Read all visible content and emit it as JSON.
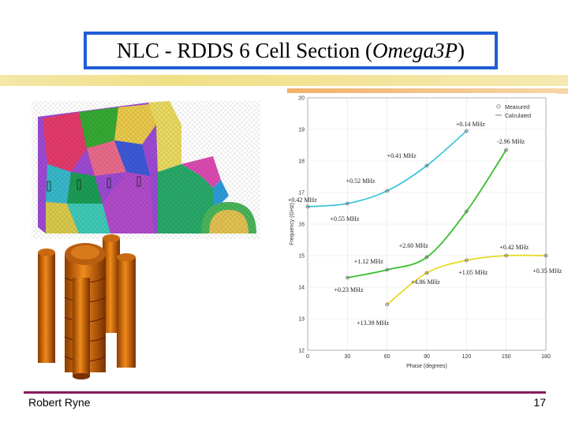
{
  "slide": {
    "title_prefix": "NLC - RDDS 6 Cell Section (",
    "title_italic": "Omega3P",
    "title_suffix": ")",
    "author": "Robert Ryne",
    "page_number": "17"
  },
  "chart_data": {
    "type": "line",
    "xlabel": "Phase (degrees)",
    "ylabel": "Frequency (GHz)",
    "xlim": [
      0,
      180
    ],
    "ylim": [
      12,
      20
    ],
    "x_ticks": [
      "0",
      "30",
      "60",
      "90",
      "120",
      "150",
      "180"
    ],
    "y_ticks": [
      "12",
      "13",
      "14",
      "15",
      "16",
      "17",
      "18",
      "19",
      "20"
    ],
    "legend": {
      "position": "top-right",
      "entries": [
        "Measured",
        "Calculated"
      ]
    },
    "series": [
      {
        "color": "#3fc4dc",
        "x": [
          0,
          30,
          60,
          90,
          120
        ],
        "y": [
          16.55,
          16.65,
          17.05,
          17.85,
          18.95
        ]
      },
      {
        "color": "#38c02a",
        "x": [
          30,
          60,
          90,
          120,
          150
        ],
        "y": [
          14.3,
          14.55,
          14.95,
          16.4,
          18.35
        ]
      },
      {
        "color": "#e8d820",
        "x": [
          60,
          90,
          120,
          150,
          180
        ],
        "y": [
          13.45,
          14.45,
          14.85,
          15.0,
          15.0
        ]
      }
    ],
    "annotations": [
      {
        "text": "+0.14 MHz",
        "x": 112,
        "y": 19.1
      },
      {
        "text": "-2.96 MHz",
        "x": 143,
        "y": 18.55
      },
      {
        "text": "+0.41 MHz",
        "x": 60,
        "y": 18.1
      },
      {
        "text": "+0.52 MHz",
        "x": 29,
        "y": 17.3
      },
      {
        "text": "+0.42 MHz",
        "x": -15,
        "y": 16.7
      },
      {
        "text": "+0.55 MHz",
        "x": 17,
        "y": 16.1
      },
      {
        "text": "+2.60 MHz",
        "x": 69,
        "y": 15.25
      },
      {
        "text": "+0.42 MHz",
        "x": 145,
        "y": 15.2
      },
      {
        "text": "+1.12 MHz",
        "x": 35,
        "y": 14.75
      },
      {
        "text": "+1.05 MHz",
        "x": 114,
        "y": 14.4
      },
      {
        "text": "+0.35 MHz",
        "x": 170,
        "y": 14.45
      },
      {
        "text": "+4.86 MHz",
        "x": 78,
        "y": 14.1
      },
      {
        "text": "+0.23 MHz",
        "x": 20,
        "y": 13.85
      },
      {
        "text": "+13.39 MHz",
        "x": 37,
        "y": 12.8
      }
    ]
  }
}
